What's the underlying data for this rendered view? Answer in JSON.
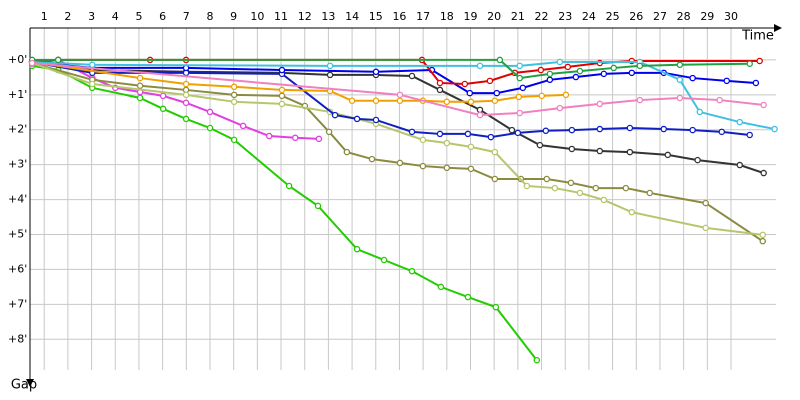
{
  "chart_data": {
    "type": "line",
    "x_label": "Time",
    "y_label": "Gap",
    "grid": true,
    "inverted_y": true,
    "xlim": [
      0.4,
      31.9
    ],
    "xticks": [
      1,
      2,
      3,
      4,
      5,
      6,
      7,
      8,
      9,
      10,
      11,
      12,
      13,
      14,
      15,
      16,
      17,
      18,
      19,
      20,
      21,
      22,
      23,
      24,
      25,
      26,
      27,
      28,
      29,
      30
    ],
    "ylim": [
      -0.57,
      8.88
    ],
    "yticks": [
      {
        "value": 0,
        "label": "+0'"
      },
      {
        "value": 1,
        "label": "+1'"
      },
      {
        "value": 2,
        "label": "+2'"
      },
      {
        "value": 3,
        "label": "+3'"
      },
      {
        "value": 4,
        "label": "+4'"
      },
      {
        "value": 5,
        "label": "+5'"
      },
      {
        "value": 6,
        "label": "+6'"
      },
      {
        "value": 7,
        "label": "+7'"
      },
      {
        "value": 8,
        "label": "+8'"
      }
    ],
    "series": [
      {
        "color": "#22cc00",
        "x": [
          0.49,
          1.59,
          3.03,
          5.05,
          6.02,
          6.99,
          8.0,
          9.02,
          11.34,
          12.56,
          14.21,
          15.35,
          16.53,
          17.75,
          18.89,
          20.07,
          21.8
        ],
        "values": [
          0.17,
          0.29,
          0.8,
          1.09,
          1.4,
          1.69,
          1.95,
          2.29,
          3.61,
          4.18,
          5.42,
          5.73,
          6.05,
          6.5,
          6.79,
          7.08,
          8.6
        ]
      },
      {
        "color": "#e040e0",
        "x": [
          0.49,
          1.59,
          3.03,
          4.0,
          5.05,
          6.02,
          6.99,
          8.0,
          9.4,
          10.5,
          11.6,
          12.6
        ],
        "values": [
          0.11,
          0,
          0.52,
          0.8,
          0.92,
          1.03,
          1.23,
          1.49,
          1.89,
          2.18,
          2.23,
          2.26
        ]
      },
      {
        "color": "#8b8b40",
        "x": [
          0.49,
          3.03,
          5.05,
          6.99,
          9.02,
          11.04,
          12.01,
          13.03,
          13.78,
          14.84,
          16.02,
          16.99,
          18.0,
          19.02,
          20.03,
          21.13,
          22.22,
          23.24,
          24.29,
          25.56,
          26.57,
          28.93,
          31.34
        ],
        "values": [
          0.09,
          0.57,
          0.74,
          0.86,
          1.0,
          1.03,
          1.32,
          2.06,
          2.64,
          2.84,
          2.95,
          3.04,
          3.09,
          3.12,
          3.41,
          3.41,
          3.41,
          3.52,
          3.67,
          3.67,
          3.81,
          4.1,
          5.19
        ]
      },
      {
        "color": "#b5c76a",
        "x": [
          0.49,
          3.03,
          6.99,
          9.02,
          11.04,
          13.07,
          15.01,
          16.99,
          18.0,
          19.02,
          20.03,
          21.38,
          22.56,
          23.62,
          24.63,
          25.81,
          28.93,
          31.34
        ],
        "values": [
          0.09,
          0.69,
          1.0,
          1.2,
          1.26,
          1.49,
          1.83,
          2.29,
          2.38,
          2.49,
          2.64,
          3.61,
          3.67,
          3.81,
          4.01,
          4.36,
          4.81,
          5.01
        ]
      },
      {
        "color": "#333333",
        "x": [
          0.49,
          3.03,
          6.99,
          11.04,
          13.07,
          15.01,
          16.53,
          17.71,
          19.4,
          20.75,
          21.93,
          23.28,
          24.46,
          25.73,
          27.33,
          28.59,
          30.37,
          31.38
        ],
        "values": [
          0.06,
          0.29,
          0.34,
          0.37,
          0.43,
          0.43,
          0.46,
          0.86,
          1.43,
          2.01,
          2.44,
          2.55,
          2.61,
          2.64,
          2.72,
          2.87,
          3.01,
          3.24
        ]
      },
      {
        "color": "#1020c0",
        "x": [
          0.49,
          3.03,
          6.99,
          11.04,
          13.28,
          14.21,
          15.01,
          16.53,
          17.71,
          18.89,
          19.86,
          21.0,
          22.18,
          23.28,
          24.46,
          25.73,
          27.16,
          28.38,
          29.61,
          30.79
        ],
        "values": [
          0.06,
          0.37,
          0.37,
          0.4,
          1.58,
          1.69,
          1.72,
          2.06,
          2.12,
          2.12,
          2.21,
          2.09,
          2.03,
          2.01,
          1.98,
          1.95,
          1.98,
          2.01,
          2.06,
          2.15
        ]
      },
      {
        "color": "#0000ee",
        "x": [
          0.49,
          3.03,
          6.99,
          11.04,
          15.01,
          17.37,
          18.97,
          20.11,
          21.21,
          22.35,
          23.45,
          24.63,
          25.81,
          27.16,
          28.38,
          29.82,
          31.05
        ],
        "values": [
          0.06,
          0.23,
          0.23,
          0.29,
          0.34,
          0.29,
          0.95,
          0.95,
          0.8,
          0.57,
          0.49,
          0.4,
          0.37,
          0.37,
          0.52,
          0.6,
          0.66
        ]
      },
      {
        "color": "#e00000",
        "x": [
          0.49,
          1.59,
          5.47,
          6.99,
          16.95,
          17.71,
          18.76,
          19.82,
          20.87,
          21.97,
          23.11,
          24.46,
          25.81,
          31.21
        ],
        "values": [
          0.06,
          0,
          0,
          0,
          0,
          0.66,
          0.69,
          0.6,
          0.37,
          0.29,
          0.2,
          0.09,
          0.03,
          0.03
        ]
      },
      {
        "color": "#f0a000",
        "x": [
          0.49,
          5.05,
          6.99,
          9.02,
          11.04,
          13.07,
          14.0,
          15.01,
          16.02,
          16.99,
          18.0,
          19.02,
          20.03,
          21.04,
          22.01,
          23.03
        ],
        "values": [
          0.06,
          0.52,
          0.69,
          0.77,
          0.86,
          0.89,
          1.17,
          1.17,
          1.17,
          1.17,
          1.2,
          1.2,
          1.17,
          1.06,
          1.03,
          1.0
        ]
      },
      {
        "color": "#40c0e0",
        "x": [
          0.49,
          3.03,
          13.07,
          19.4,
          21.08,
          22.77,
          26.15,
          27.84,
          28.68,
          30.37,
          31.84
        ],
        "values": [
          0.06,
          0.14,
          0.17,
          0.17,
          0.17,
          0.06,
          0.06,
          0.57,
          1.49,
          1.78,
          1.98
        ]
      },
      {
        "color": "#20a040",
        "x": [
          0.49,
          1.59,
          20.24,
          21.08,
          22.35,
          23.62,
          25.05,
          26.15,
          27.84,
          30.79
        ],
        "values": [
          0,
          0,
          0,
          0.52,
          0.4,
          0.32,
          0.23,
          0.17,
          0.14,
          0.11
        ]
      },
      {
        "color": "#f080c0",
        "x": [
          0.49,
          16.02,
          19.4,
          21.08,
          22.77,
          24.46,
          26.15,
          27.84,
          29.52,
          31.38
        ],
        "values": [
          0.09,
          1.0,
          1.58,
          1.52,
          1.38,
          1.26,
          1.15,
          1.09,
          1.15,
          1.29
        ]
      }
    ]
  }
}
